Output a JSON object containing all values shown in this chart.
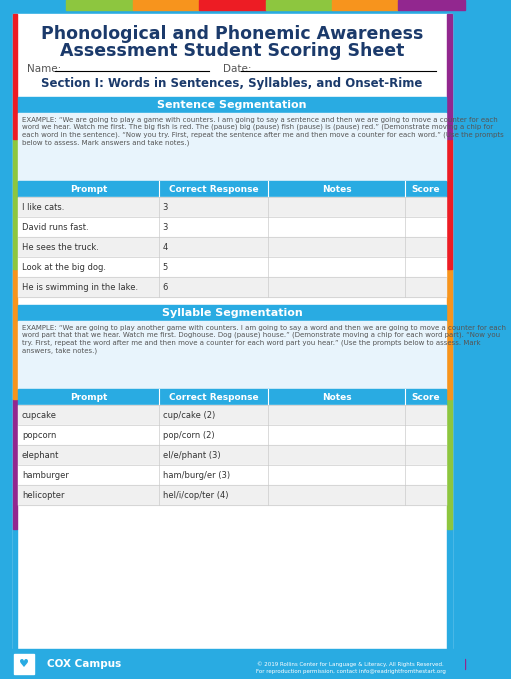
{
  "title_line1": "Phonological and Phonemic Awareness",
  "title_line2": "Assessment Student Scoring Sheet",
  "section_title": "Section I: Words in Sentences, Syllables, and Onset-Rime",
  "name_label": "Name:",
  "date_label": "Date:",
  "seg1_header": "Sentence Segmentation",
  "seg1_example": "EXAMPLE: “We are going to play a game with counters. I am going to say a sentence and then we are going to move a counter for each word we hear. Watch me first. The big fish is red. The (pause) big (pause) fish (pause) is (pause) red.” (Demonstrate moving a chip for each word in the sentence). “Now you try. First, repeat the sentence after me and then move a counter for each word.” (Use the prompts below to assess. Mark answers and take notes.)",
  "seg1_col_headers": [
    "Prompt",
    "Correct Response",
    "Notes",
    "Score"
  ],
  "seg1_rows": [
    [
      "I like cats.",
      "3",
      "",
      ""
    ],
    [
      "David runs fast.",
      "3",
      "",
      ""
    ],
    [
      "He sees the truck.",
      "4",
      "",
      ""
    ],
    [
      "Look at the big dog.",
      "5",
      "",
      ""
    ],
    [
      "He is swimming in the lake.",
      "6",
      "",
      ""
    ]
  ],
  "seg2_header": "Syllable Segmentation",
  "seg2_example": "EXAMPLE: “We are going to play another game with counters. I am going to say a word and then we are going to move a counter for each word part that that we hear. Watch me first. Doghouse. Dog (pause) house.” (Demonstrate moving a chip for each word part). “Now you try. First, repeat the word after me and then move a counter for each word part you hear.” (Use the prompts below to assess. Mark answers, take notes.)",
  "seg2_col_headers": [
    "Prompt",
    "Correct Response",
    "Notes",
    "Score"
  ],
  "seg2_rows": [
    [
      "cupcake",
      "cup/cake (2)",
      "",
      ""
    ],
    [
      "popcorn",
      "pop/corn (2)",
      "",
      ""
    ],
    [
      "elephant",
      "el/e/phant (3)",
      "",
      ""
    ],
    [
      "hamburger",
      "ham/burg/er (3)",
      "",
      ""
    ],
    [
      "helicopter",
      "hel/i/cop/ter (4)",
      "",
      ""
    ]
  ],
  "footer_left": "COX Campus",
  "footer_right": "© 2019 Rollins Center for Language & Literacy. All Rights Reserved.\nFor reproduction permission, contact info@readrightfromthestart.org",
  "header_bg": "#29ABE2",
  "table_header_bg": "#29ABE2",
  "table_row_odd": "#F0F0F0",
  "table_row_even": "#FFFFFF",
  "section_bg": "#E8F4FC",
  "border_colors": [
    "#29ABE2",
    "#8DC63F",
    "#F7941D",
    "#ED1C24",
    "#29ABE2",
    "#8DC63F",
    "#F7941D",
    "#92278F"
  ],
  "title_color": "#1B3A6B",
  "section_title_color": "#1B3A6B",
  "table_header_text": "#FFFFFF",
  "body_text_color": "#555555",
  "row_text_color": "#333333"
}
